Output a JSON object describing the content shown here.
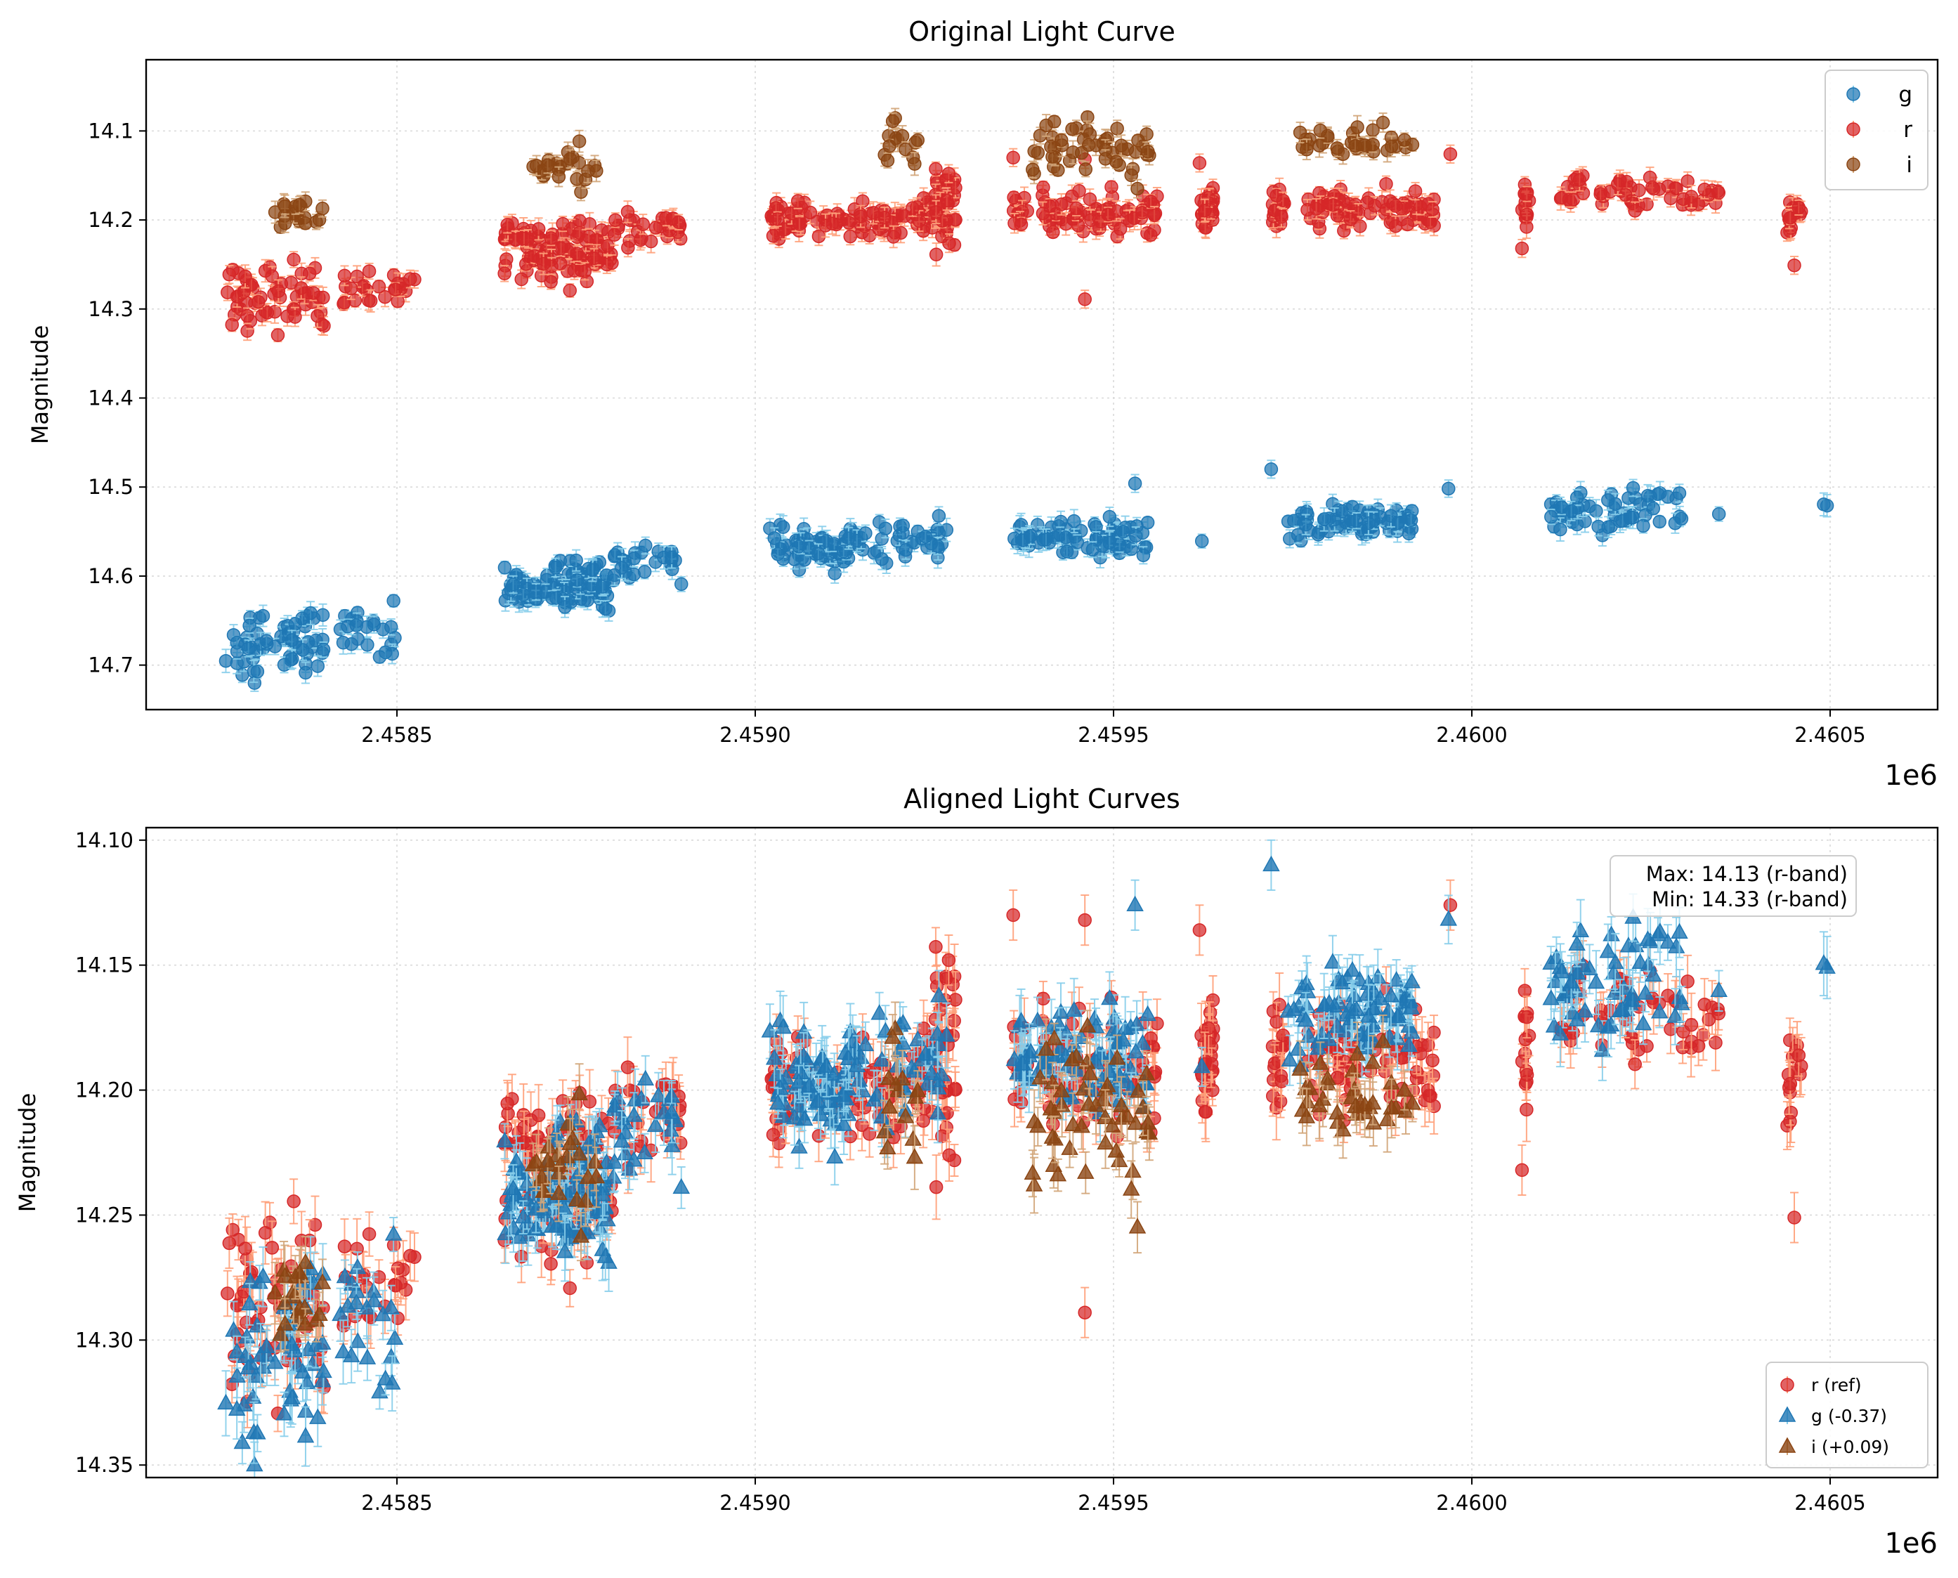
{
  "chart_data": [
    {
      "type": "scatter",
      "title": "Original Light Curve",
      "xlabel": "",
      "ylabel": "Magnitude",
      "x_offset_label": "1e6",
      "xlim": [
        2.45815,
        2.46065
      ],
      "ylim": [
        14.75,
        14.02
      ],
      "y_inverted": true,
      "grid": true,
      "xticks": [
        2.4585,
        2.459,
        2.4595,
        2.46,
        2.4605
      ],
      "xtick_labels": [
        "2.4585",
        "2.4590",
        "2.4595",
        "2.4600",
        "2.4605"
      ],
      "yticks": [
        14.1,
        14.2,
        14.3,
        14.4,
        14.5,
        14.6,
        14.7
      ],
      "ytick_labels": [
        "14.1",
        "14.2",
        "14.3",
        "14.4",
        "14.5",
        "14.6",
        "14.7"
      ],
      "legend_position": "upper-right",
      "series": [
        {
          "name": "g",
          "color": "#1f77b4",
          "errcolor": "#87ceeb",
          "marker": "circle",
          "clusters": [
            {
              "x": [
                2.45826,
                2.4584
              ],
              "mag": 14.675,
              "spread": 0.018,
              "n": 60
            },
            {
              "x": [
                2.45842,
                2.4585
              ],
              "mag": 14.665,
              "spread": 0.02,
              "n": 22
            },
            {
              "x": [
                2.45865,
                2.4588
              ],
              "mag": 14.612,
              "spread": 0.013,
              "n": 110
            },
            {
              "x": [
                2.4588,
                2.4589
              ],
              "mag": 14.585,
              "spread": 0.012,
              "n": 28
            },
            {
              "x": [
                2.45902,
                2.45913
              ],
              "mag": 14.57,
              "spread": 0.011,
              "n": 70
            },
            {
              "x": [
                2.45913,
                2.45927
              ],
              "mag": 14.56,
              "spread": 0.012,
              "n": 45
            },
            {
              "x": [
                2.45936,
                2.45955
              ],
              "mag": 14.555,
              "spread": 0.01,
              "n": 80
            },
            {
              "x": [
                2.45962,
                2.45963
              ],
              "mag": 14.565,
              "spread": 0.003,
              "n": 1
            },
            {
              "x": [
                2.45974,
                2.45992
              ],
              "mag": 14.538,
              "spread": 0.01,
              "n": 80
            },
            {
              "x": [
                2.45996,
                2.45997
              ],
              "mag": 14.499,
              "spread": 0.003,
              "n": 1
            },
            {
              "x": [
                2.46011,
                2.4603
              ],
              "mag": 14.528,
              "spread": 0.012,
              "n": 60
            },
            {
              "x": [
                2.46034,
                2.46035
              ],
              "mag": 14.53,
              "spread": 0.003,
              "n": 1
            },
            {
              "x": [
                2.46049,
                2.4605
              ],
              "mag": 14.522,
              "spread": 0.003,
              "n": 2
            }
          ],
          "extra_points": [
            [
              2.45953,
              14.496
            ],
            [
              2.45972,
              14.48
            ]
          ]
        },
        {
          "name": "r",
          "color": "#d62728",
          "errcolor": "#ffa07a",
          "marker": "circle",
          "clusters": [
            {
              "x": [
                2.45826,
                2.4584
              ],
              "mag": 14.285,
              "spread": 0.018,
              "n": 60
            },
            {
              "x": [
                2.45842,
                2.45853
              ],
              "mag": 14.28,
              "spread": 0.01,
              "n": 25
            },
            {
              "x": [
                2.45865,
                2.4588
              ],
              "mag": 14.235,
              "spread": 0.015,
              "n": 110
            },
            {
              "x": [
                2.4588,
                2.4589
              ],
              "mag": 14.21,
              "spread": 0.012,
              "n": 28
            },
            {
              "x": [
                2.45902,
                2.45927
              ],
              "mag": 14.2,
              "spread": 0.01,
              "n": 110
            },
            {
              "x": [
                2.45925,
                2.45928
              ],
              "mag": 14.19,
              "spread": 0.03,
              "n": 30
            },
            {
              "x": [
                2.45936,
                2.45938
              ],
              "mag": 14.19,
              "spread": 0.015,
              "n": 12
            },
            {
              "x": [
                2.4594,
                2.45957
              ],
              "mag": 14.192,
              "spread": 0.012,
              "n": 70
            },
            {
              "x": [
                2.45962,
                2.45964
              ],
              "mag": 14.19,
              "spread": 0.015,
              "n": 30
            },
            {
              "x": [
                2.45972,
                2.45974
              ],
              "mag": 14.19,
              "spread": 0.012,
              "n": 18
            },
            {
              "x": [
                2.45977,
                2.45995
              ],
              "mag": 14.19,
              "spread": 0.01,
              "n": 80
            },
            {
              "x": [
                2.46007,
                2.46008
              ],
              "mag": 14.19,
              "spread": 0.015,
              "n": 14
            },
            {
              "x": [
                2.46012,
                2.46035
              ],
              "mag": 14.17,
              "spread": 0.01,
              "n": 55
            },
            {
              "x": [
                2.46044,
                2.46046
              ],
              "mag": 14.19,
              "spread": 0.018,
              "n": 15
            }
          ],
          "extra_points": [
            [
              2.45946,
              14.289
            ],
            [
              2.45927,
              14.148
            ],
            [
              2.45936,
              14.13
            ],
            [
              2.45946,
              14.132
            ],
            [
              2.45962,
              14.136
            ],
            [
              2.45997,
              14.126
            ],
            [
              2.46045,
              14.251
            ],
            [
              2.46007,
              14.232
            ]
          ]
        },
        {
          "name": "i",
          "color": "#8b4513",
          "errcolor": "#d2a679",
          "marker": "circle",
          "clusters": [
            {
              "x": [
                2.45832,
                2.45842
              ],
              "mag": 14.19,
              "spread": 0.012,
              "n": 20
            },
            {
              "x": [
                2.45869,
                2.45878
              ],
              "mag": 14.138,
              "spread": 0.01,
              "n": 25
            },
            {
              "x": [
                2.45917,
                2.45923
              ],
              "mag": 14.11,
              "spread": 0.015,
              "n": 14
            },
            {
              "x": [
                2.45938,
                2.45955
              ],
              "mag": 14.12,
              "spread": 0.015,
              "n": 50
            },
            {
              "x": [
                2.45976,
                2.45992
              ],
              "mag": 14.11,
              "spread": 0.01,
              "n": 35
            }
          ],
          "extra_points": []
        }
      ]
    },
    {
      "type": "scatter",
      "title": "Aligned Light Curves",
      "xlabel": "",
      "ylabel": "Magnitude",
      "x_offset_label": "1e6",
      "xlim": [
        2.45815,
        2.46065
      ],
      "ylim": [
        14.355,
        14.095
      ],
      "y_inverted": true,
      "grid": true,
      "xticks": [
        2.4585,
        2.459,
        2.4595,
        2.46,
        2.4605
      ],
      "xtick_labels": [
        "2.4585",
        "2.4590",
        "2.4595",
        "2.4600",
        "2.4605"
      ],
      "yticks": [
        14.1,
        14.15,
        14.2,
        14.25,
        14.3,
        14.35
      ],
      "ytick_labels": [
        "14.10",
        "14.15",
        "14.20",
        "14.25",
        "14.30",
        "14.35"
      ],
      "legend_position": "lower-right",
      "annotation": [
        "Max: 14.13 (r-band)",
        "Min: 14.33 (r-band)"
      ],
      "series": [
        {
          "name": "r (ref)",
          "source": "r",
          "offset": 0.0,
          "color": "#d62728",
          "errcolor": "#ffa07a",
          "marker": "circle"
        },
        {
          "name": "g (-0.37)",
          "source": "g",
          "offset": -0.37,
          "color": "#1f77b4",
          "errcolor": "#87ceeb",
          "marker": "triangle"
        },
        {
          "name": "i (+0.09)",
          "source": "i",
          "offset": 0.09,
          "color": "#8b4513",
          "errcolor": "#d2a679",
          "marker": "triangle"
        }
      ]
    }
  ]
}
